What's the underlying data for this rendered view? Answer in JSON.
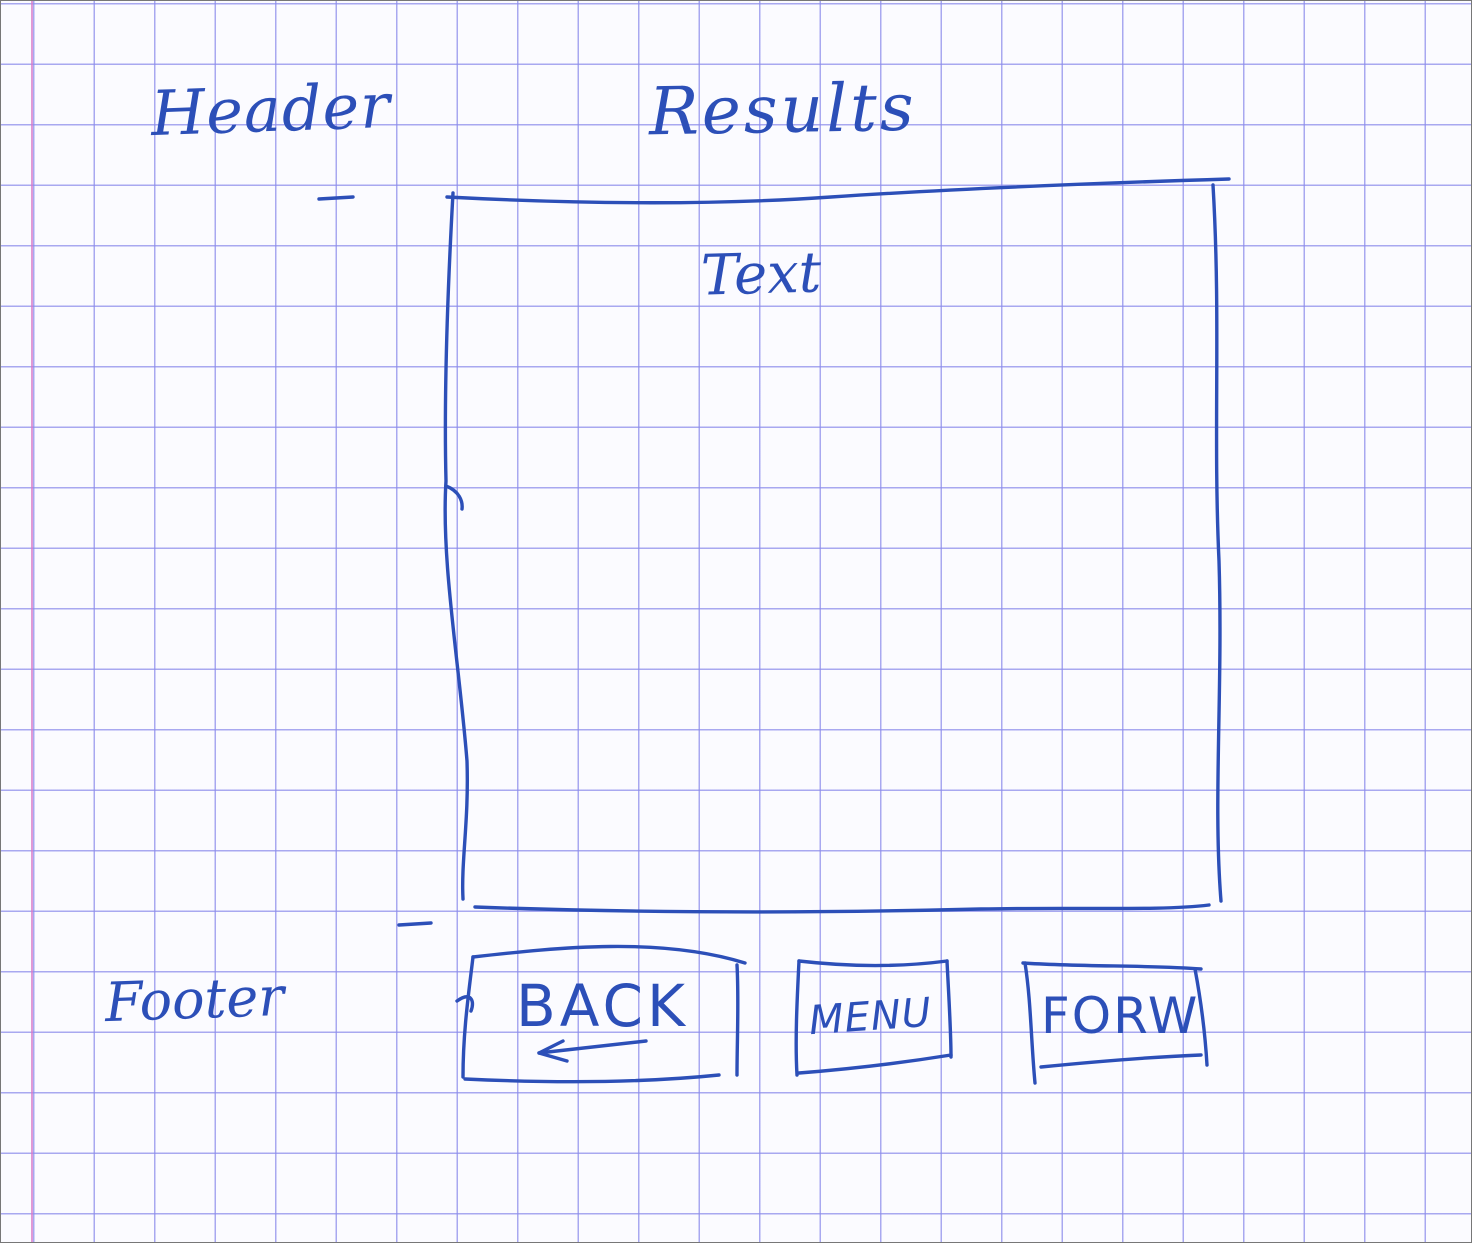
{
  "header": {
    "label": "Header",
    "title": "Results"
  },
  "content": {
    "text": "Text"
  },
  "footer": {
    "label": "Footer",
    "buttons": {
      "back": "BACK",
      "menu": "MENU",
      "forward": "FORW"
    }
  },
  "colors": {
    "ink": "#2c4fb8",
    "grid": "#8c8ceb",
    "margin": "#d778c8"
  }
}
